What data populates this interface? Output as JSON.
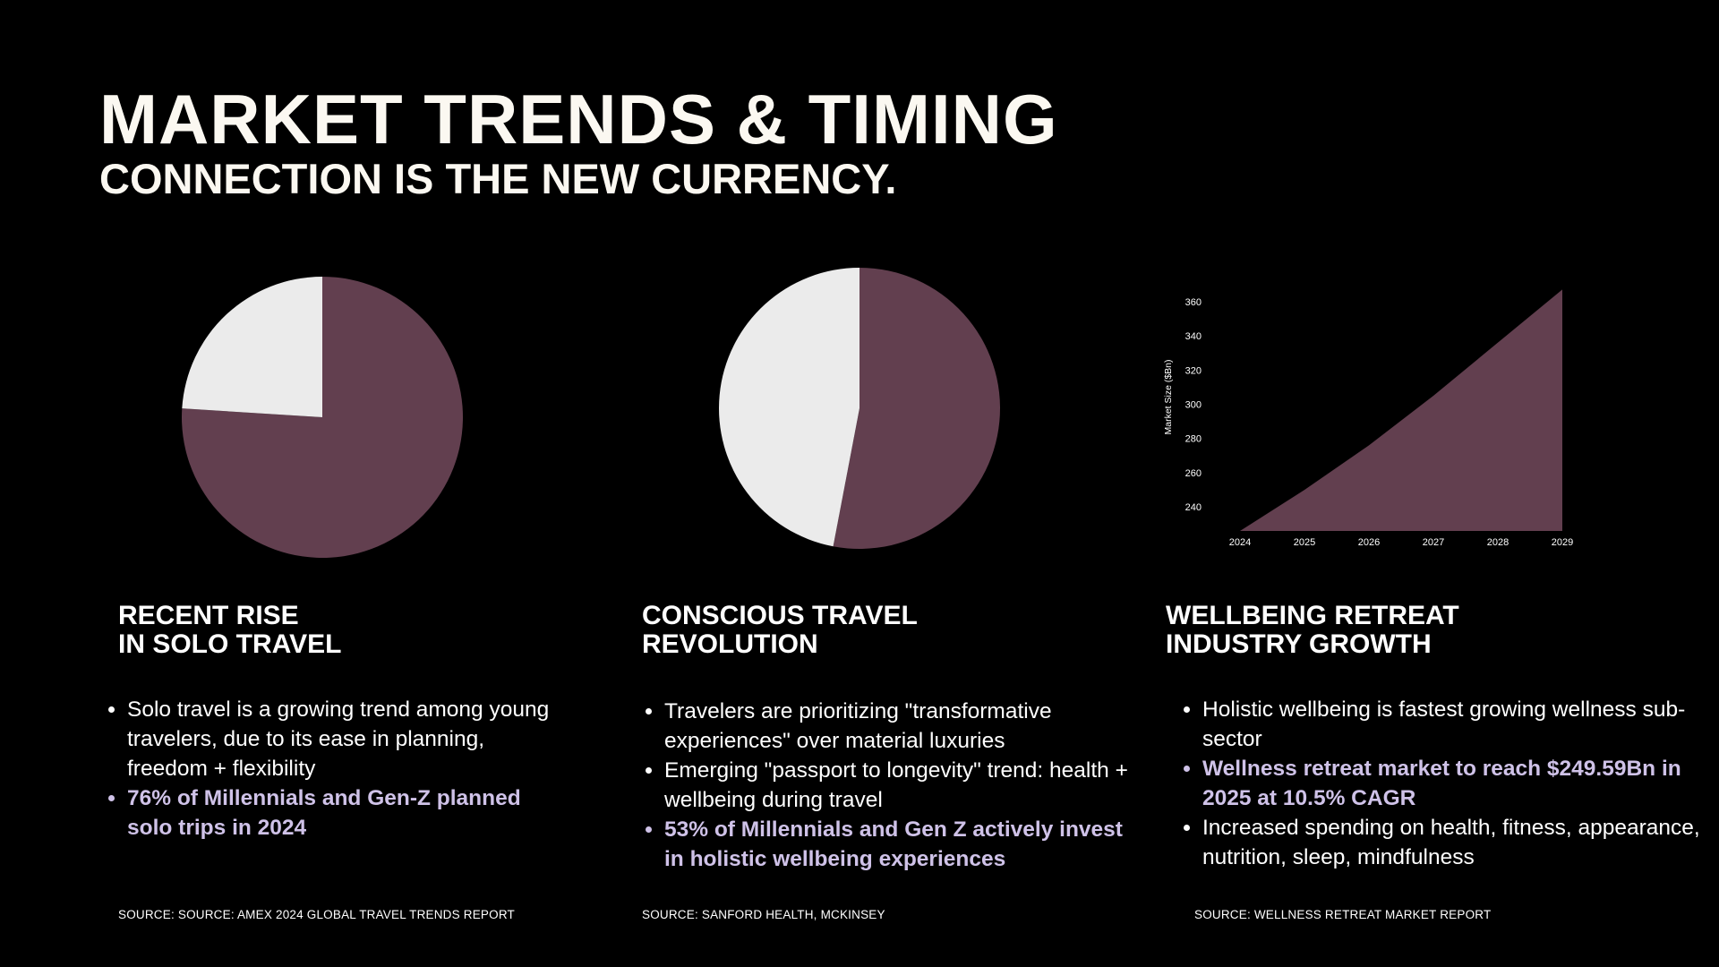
{
  "header": {
    "title": "MARKET TRENDS & TIMING",
    "subtitle": "CONNECTION IS THE NEW CURRENCY."
  },
  "colors": {
    "background": "#000000",
    "accent": "#623f4f",
    "light": "#ebebeb",
    "highlight": "#cfc2e8"
  },
  "columns": [
    {
      "heading": [
        "RECENT RISE",
        "IN SOLO TRAVEL"
      ],
      "bullets": [
        {
          "text": "Solo travel is a growing trend among young travelers, due to its ease in planning, freedom + flexibility",
          "highlight": false
        },
        {
          "text": "76% of Millennials and Gen-Z planned solo trips in 2024",
          "highlight": true
        }
      ],
      "source": "SOURCE: SOURCE: AMEX 2024 GLOBAL TRAVEL TRENDS REPORT"
    },
    {
      "heading": [
        "CONSCIOUS TRAVEL",
        "REVOLUTION"
      ],
      "bullets": [
        {
          "text": "Travelers are prioritizing \"transformative experiences\" over material luxuries",
          "highlight": false
        },
        {
          "text": "Emerging \"passport to longevity\" trend: health + wellbeing during travel",
          "highlight": false
        },
        {
          "text": "53% of Millennials and Gen Z actively invest in holistic wellbeing experiences",
          "highlight": true
        }
      ],
      "source": "SOURCE: SANFORD HEALTH, MCKINSEY"
    },
    {
      "heading": [
        "WELLBEING RETREAT",
        "INDUSTRY GROWTH"
      ],
      "bullets": [
        {
          "text": "Holistic wellbeing is fastest growing wellness sub-sector",
          "highlight": false
        },
        {
          "text": "Wellness retreat market to reach $249.59Bn in 2025 at 10.5% CAGR",
          "highlight": true
        },
        {
          "text": "Increased spending on health, fitness, appearance, nutrition, sleep, mindfulness",
          "highlight": false
        }
      ],
      "source": "SOURCE: WELLNESS RETREAT MARKET REPORT"
    }
  ],
  "chart_data": [
    {
      "type": "pie",
      "slices": [
        {
          "value": 76,
          "color": "#623f4f"
        },
        {
          "value": 24,
          "color": "#ebebeb"
        }
      ]
    },
    {
      "type": "pie",
      "slices": [
        {
          "value": 53,
          "color": "#623f4f"
        },
        {
          "value": 47,
          "color": "#ebebeb"
        }
      ]
    },
    {
      "type": "area",
      "x": [
        "2024",
        "2025",
        "2026",
        "2027",
        "2028",
        "2029"
      ],
      "values": [
        226,
        250,
        276,
        305,
        336,
        367
      ],
      "ylabel": "Market Size ($Bn)",
      "yticks": [
        240,
        260,
        280,
        300,
        320,
        340,
        360
      ],
      "ylim": [
        226,
        374
      ],
      "color": "#623f4f",
      "grid": false
    }
  ]
}
